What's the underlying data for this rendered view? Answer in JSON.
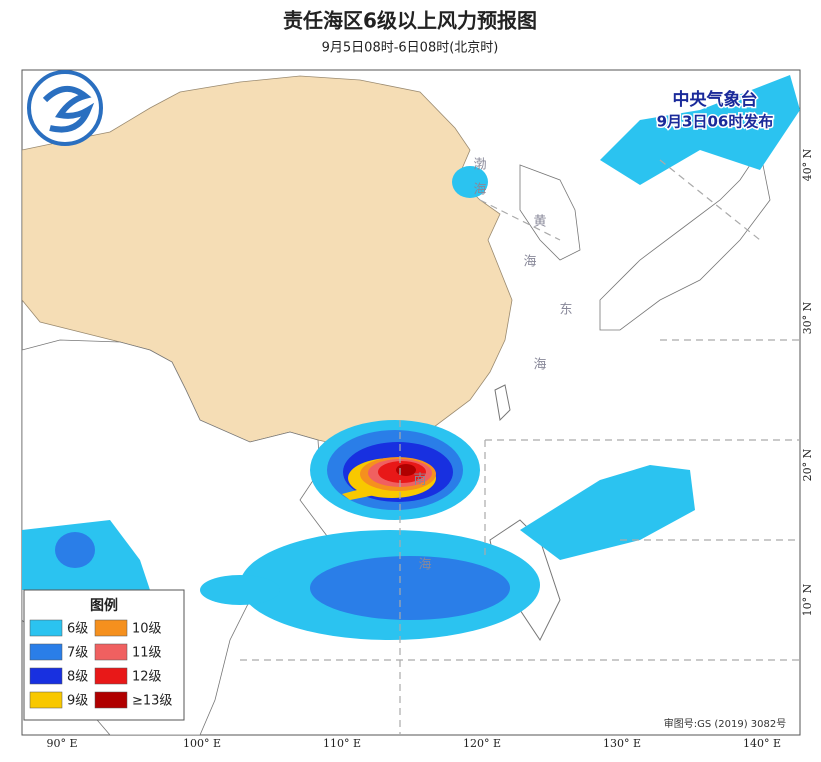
{
  "header": {
    "title": "责任海区6级以上风力预报图",
    "subtitle": "9月5日08时-6日08时(北京时)"
  },
  "publisher": {
    "name": "中央气象台",
    "issued": "9月3日06时发布"
  },
  "legend": {
    "title": "图例",
    "items": [
      {
        "label": "6级",
        "color": "#2bc3f0"
      },
      {
        "label": "10级",
        "color": "#f5901e"
      },
      {
        "label": "7级",
        "color": "#2a7ee8"
      },
      {
        "label": "11级",
        "color": "#f06060"
      },
      {
        "label": "8级",
        "color": "#1830e0"
      },
      {
        "label": "12级",
        "color": "#e81818"
      },
      {
        "label": "9级",
        "color": "#f8c800"
      },
      {
        "label": "≥13级",
        "color": "#b00000"
      }
    ]
  },
  "axes": {
    "longitudes": [
      "90° E",
      "100° E",
      "110° E",
      "120° E",
      "130° E",
      "140° E"
    ],
    "latitudes": [
      "40° N",
      "30° N",
      "20° N",
      "10° N"
    ]
  },
  "sea_labels": [
    "渤",
    "海",
    "黄",
    "海",
    "东",
    "海",
    "南",
    "海"
  ],
  "approval": "审图号:GS (2019) 3082号"
}
